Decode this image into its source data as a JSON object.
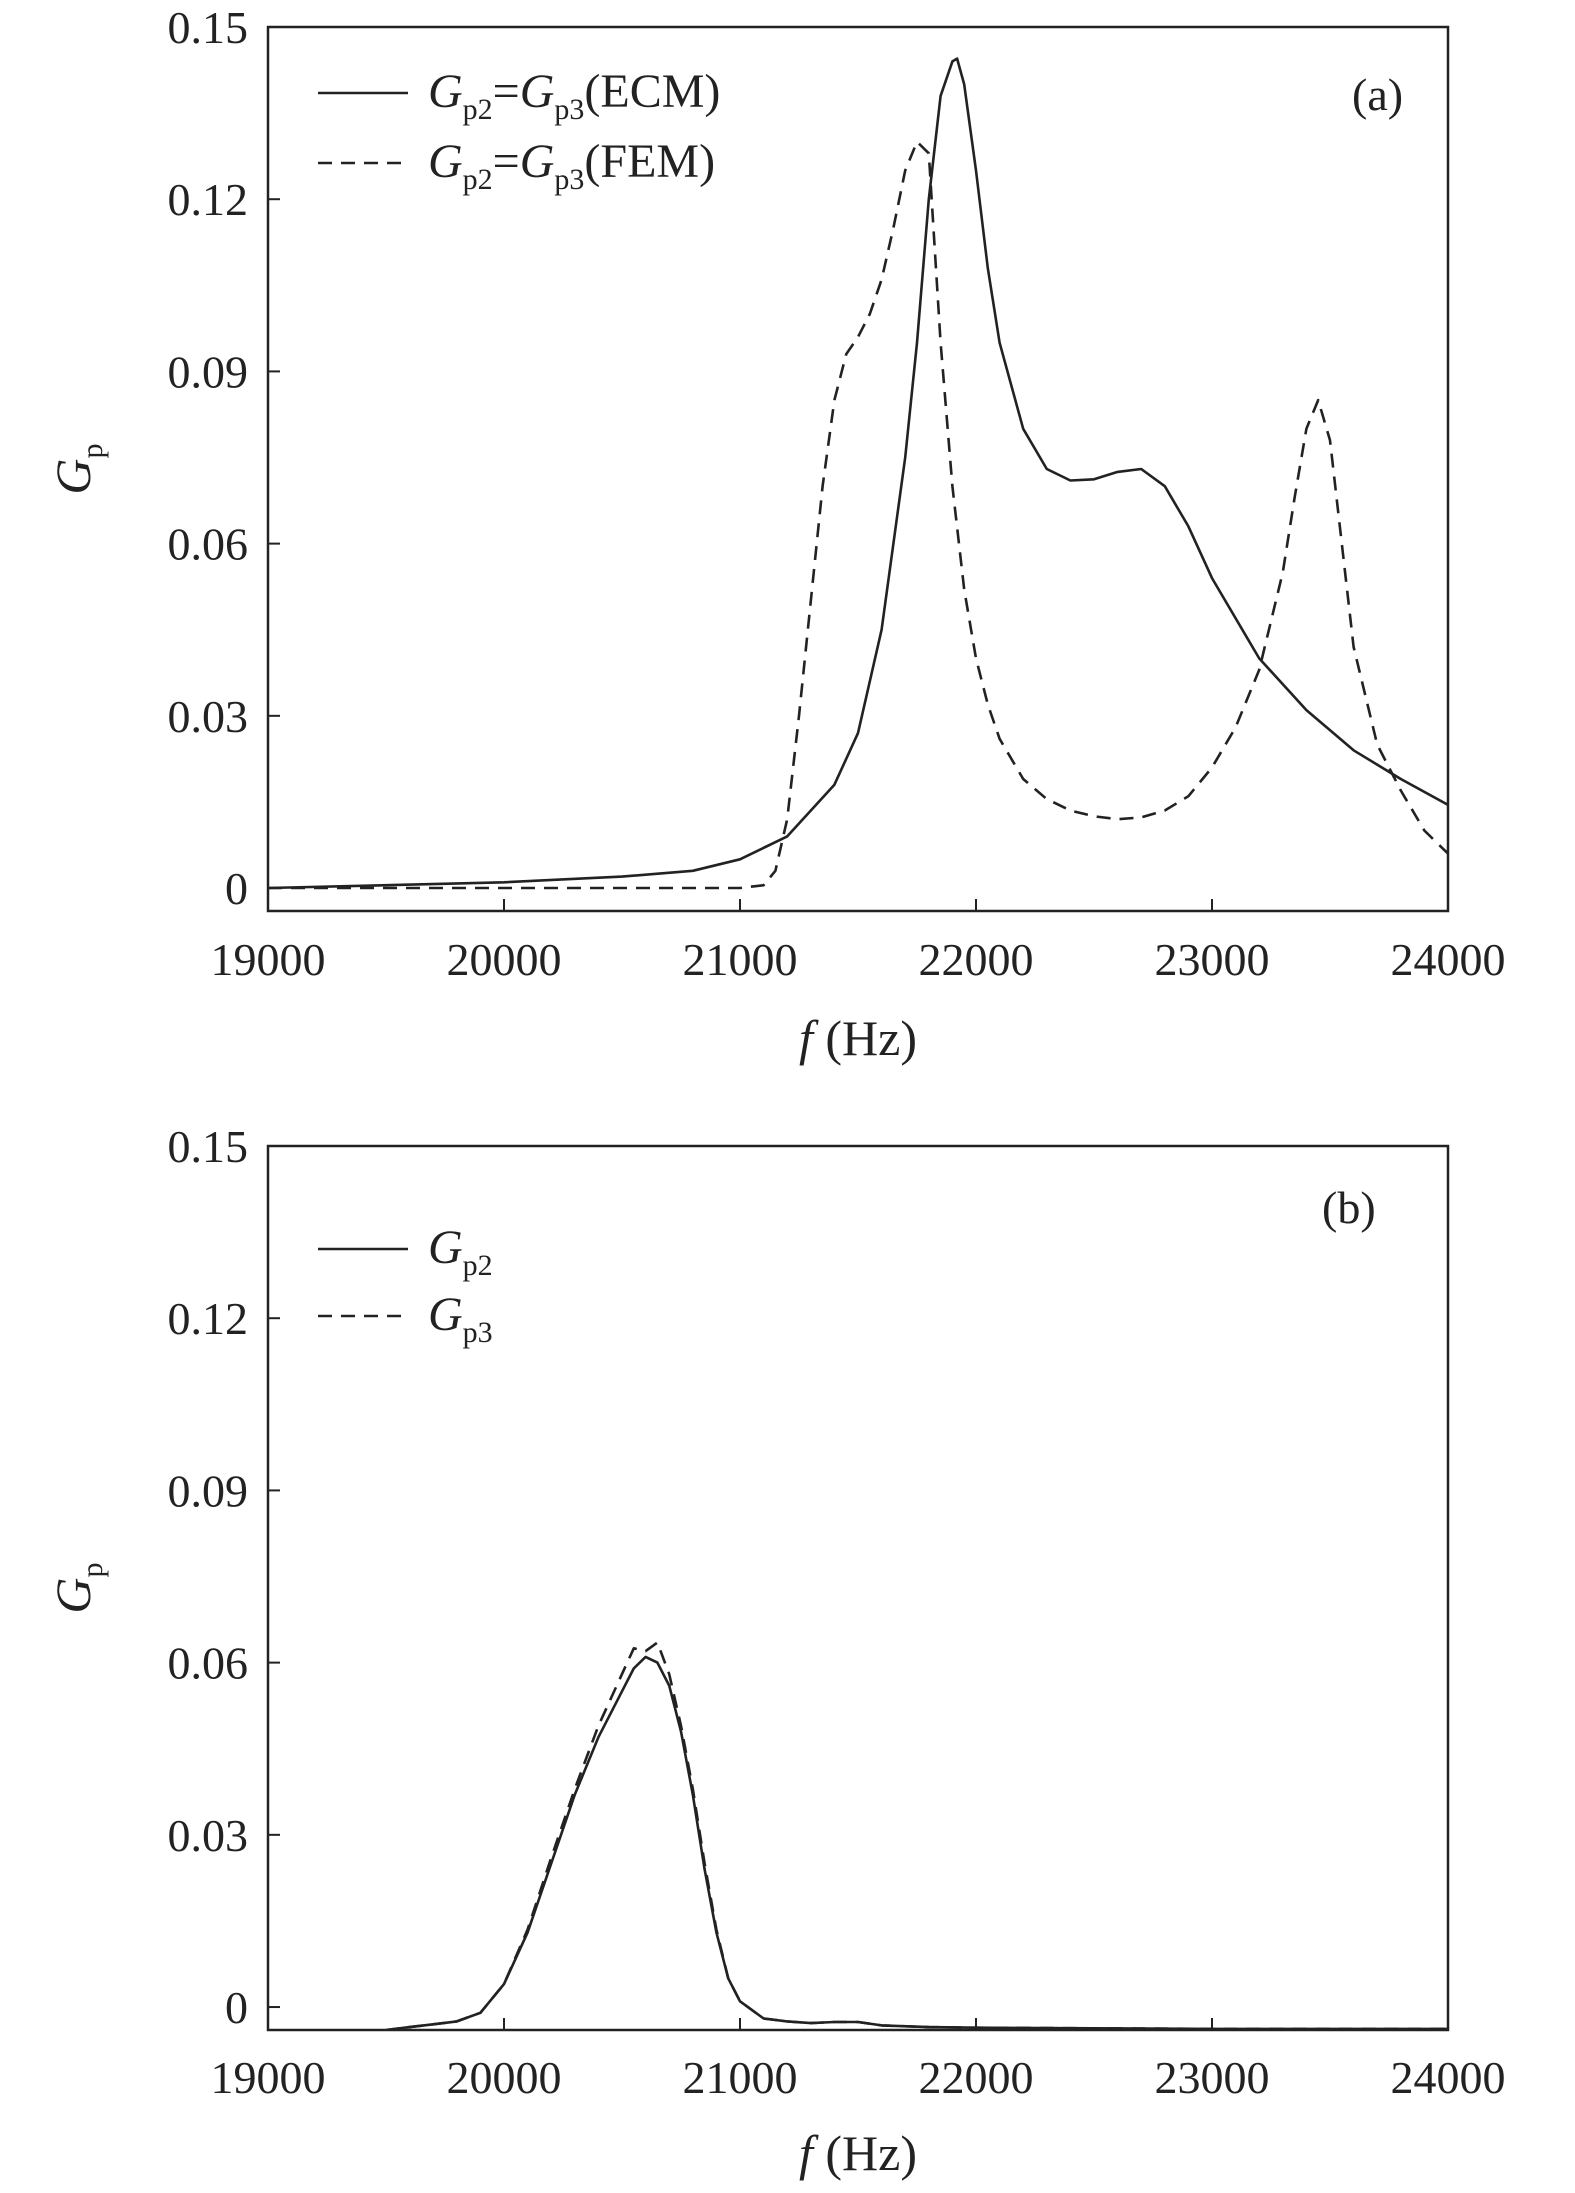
{
  "chart_data": [
    {
      "panel": "(a)",
      "type": "line",
      "xlabel": {
        "italic": "f",
        "unit": "(Hz)"
      },
      "ylabel": {
        "main": "G",
        "sub": "p"
      },
      "xlim": [
        19000,
        24000
      ],
      "ylim": [
        -0.004,
        0.15
      ],
      "xticks": [
        "19000",
        "20000",
        "21000",
        "22000",
        "23000",
        "24000"
      ],
      "yticks": [
        "0",
        "0.03",
        "0.06",
        "0.09",
        "0.12",
        "0.15"
      ],
      "legend_position": "top-left",
      "grid": false,
      "series": [
        {
          "name_parts": {
            "g1": "G",
            "s1": "p2",
            "eq": "=",
            "g2": "G",
            "s2": "p3",
            "tail": "(ECM)"
          },
          "style": "solid",
          "x": [
            19000,
            19500,
            20000,
            20500,
            20800,
            21000,
            21200,
            21400,
            21500,
            21600,
            21700,
            21750,
            21800,
            21850,
            21900,
            21920,
            21950,
            22000,
            22050,
            22100,
            22200,
            22300,
            22400,
            22500,
            22600,
            22700,
            22800,
            22900,
            23000,
            23200,
            23400,
            23600,
            23800,
            24000
          ],
          "y": [
            0.0,
            0.0005,
            0.001,
            0.002,
            0.003,
            0.005,
            0.009,
            0.018,
            0.027,
            0.045,
            0.075,
            0.095,
            0.12,
            0.138,
            0.144,
            0.1445,
            0.14,
            0.125,
            0.108,
            0.095,
            0.08,
            0.073,
            0.071,
            0.0712,
            0.0725,
            0.073,
            0.07,
            0.063,
            0.054,
            0.04,
            0.031,
            0.024,
            0.019,
            0.0145
          ]
        },
        {
          "name_parts": {
            "g1": "G",
            "s1": "p2",
            "eq": "=",
            "g2": "G",
            "s2": "p3",
            "tail": "(FEM)"
          },
          "style": "dashed",
          "x": [
            19000,
            19500,
            20000,
            20500,
            21000,
            21100,
            21150,
            21200,
            21250,
            21300,
            21350,
            21400,
            21450,
            21500,
            21550,
            21600,
            21650,
            21700,
            21750,
            21800,
            21850,
            21900,
            21950,
            22000,
            22050,
            22100,
            22200,
            22300,
            22400,
            22500,
            22600,
            22700,
            22800,
            22900,
            23000,
            23100,
            23200,
            23300,
            23350,
            23400,
            23450,
            23500,
            23550,
            23600,
            23700,
            23800,
            23900,
            24000
          ],
          "y": [
            0.0,
            0.0,
            0.0,
            0.0,
            0.0,
            0.0005,
            0.003,
            0.012,
            0.03,
            0.05,
            0.07,
            0.085,
            0.093,
            0.096,
            0.1,
            0.106,
            0.115,
            0.125,
            0.13,
            0.128,
            0.095,
            0.07,
            0.052,
            0.04,
            0.032,
            0.026,
            0.019,
            0.0155,
            0.0135,
            0.0125,
            0.012,
            0.0123,
            0.0135,
            0.016,
            0.021,
            0.028,
            0.038,
            0.055,
            0.068,
            0.08,
            0.085,
            0.078,
            0.06,
            0.042,
            0.025,
            0.017,
            0.01,
            0.006
          ]
        }
      ]
    },
    {
      "panel": "(b)",
      "type": "line",
      "xlabel": {
        "italic": "f",
        "unit": "(Hz)"
      },
      "ylabel": {
        "main": "G",
        "sub": "p"
      },
      "xlim": [
        19000,
        24000
      ],
      "ylim": [
        -0.004,
        0.15
      ],
      "xticks": [
        "19000",
        "20000",
        "21000",
        "22000",
        "23000",
        "24000"
      ],
      "yticks": [
        "0",
        "0.03",
        "0.06",
        "0.09",
        "0.12",
        "0.15"
      ],
      "legend_position": "top-left",
      "grid": false,
      "series": [
        {
          "name_parts": {
            "g1": "G",
            "s1": "p2"
          },
          "style": "solid",
          "x": [
            19500,
            19600,
            19700,
            19800,
            19900,
            20000,
            20100,
            20200,
            20300,
            20400,
            20500,
            20550,
            20600,
            20650,
            20700,
            20750,
            20800,
            20850,
            20900,
            20950,
            21000,
            21100,
            21200,
            21300,
            21400,
            21500,
            21600,
            21800,
            22000,
            22500,
            23000,
            23500,
            24000
          ],
          "y": [
            -0.004,
            -0.0035,
            -0.003,
            -0.0025,
            -0.001,
            0.004,
            0.013,
            0.025,
            0.037,
            0.047,
            0.055,
            0.059,
            0.061,
            0.06,
            0.056,
            0.048,
            0.037,
            0.024,
            0.013,
            0.005,
            0.001,
            -0.002,
            -0.0025,
            -0.0028,
            -0.0026,
            -0.0026,
            -0.0032,
            -0.0035,
            -0.0036,
            -0.0037,
            -0.0038,
            -0.0038,
            -0.0038
          ]
        },
        {
          "name_parts": {
            "g1": "G",
            "s1": "p3"
          },
          "style": "dashed",
          "x": [
            19500,
            19600,
            19700,
            19800,
            19900,
            20000,
            20100,
            20200,
            20300,
            20400,
            20500,
            20550,
            20600,
            20650,
            20700,
            20750,
            20800,
            20850,
            20900,
            20950,
            21000,
            21100,
            21200,
            21300,
            21400,
            21500,
            21600,
            21800,
            22000,
            22500,
            23000,
            23500,
            24000
          ],
          "y": [
            -0.004,
            -0.0035,
            -0.003,
            -0.0025,
            -0.001,
            0.004,
            0.0135,
            0.026,
            0.038,
            0.049,
            0.058,
            0.0625,
            0.062,
            0.0635,
            0.058,
            0.049,
            0.038,
            0.025,
            0.0135,
            0.005,
            0.001,
            -0.002,
            -0.0025,
            -0.0028,
            -0.0026,
            -0.0026,
            -0.0032,
            -0.0035,
            -0.0036,
            -0.0037,
            -0.0038,
            -0.0038,
            -0.0038
          ]
        }
      ]
    }
  ]
}
